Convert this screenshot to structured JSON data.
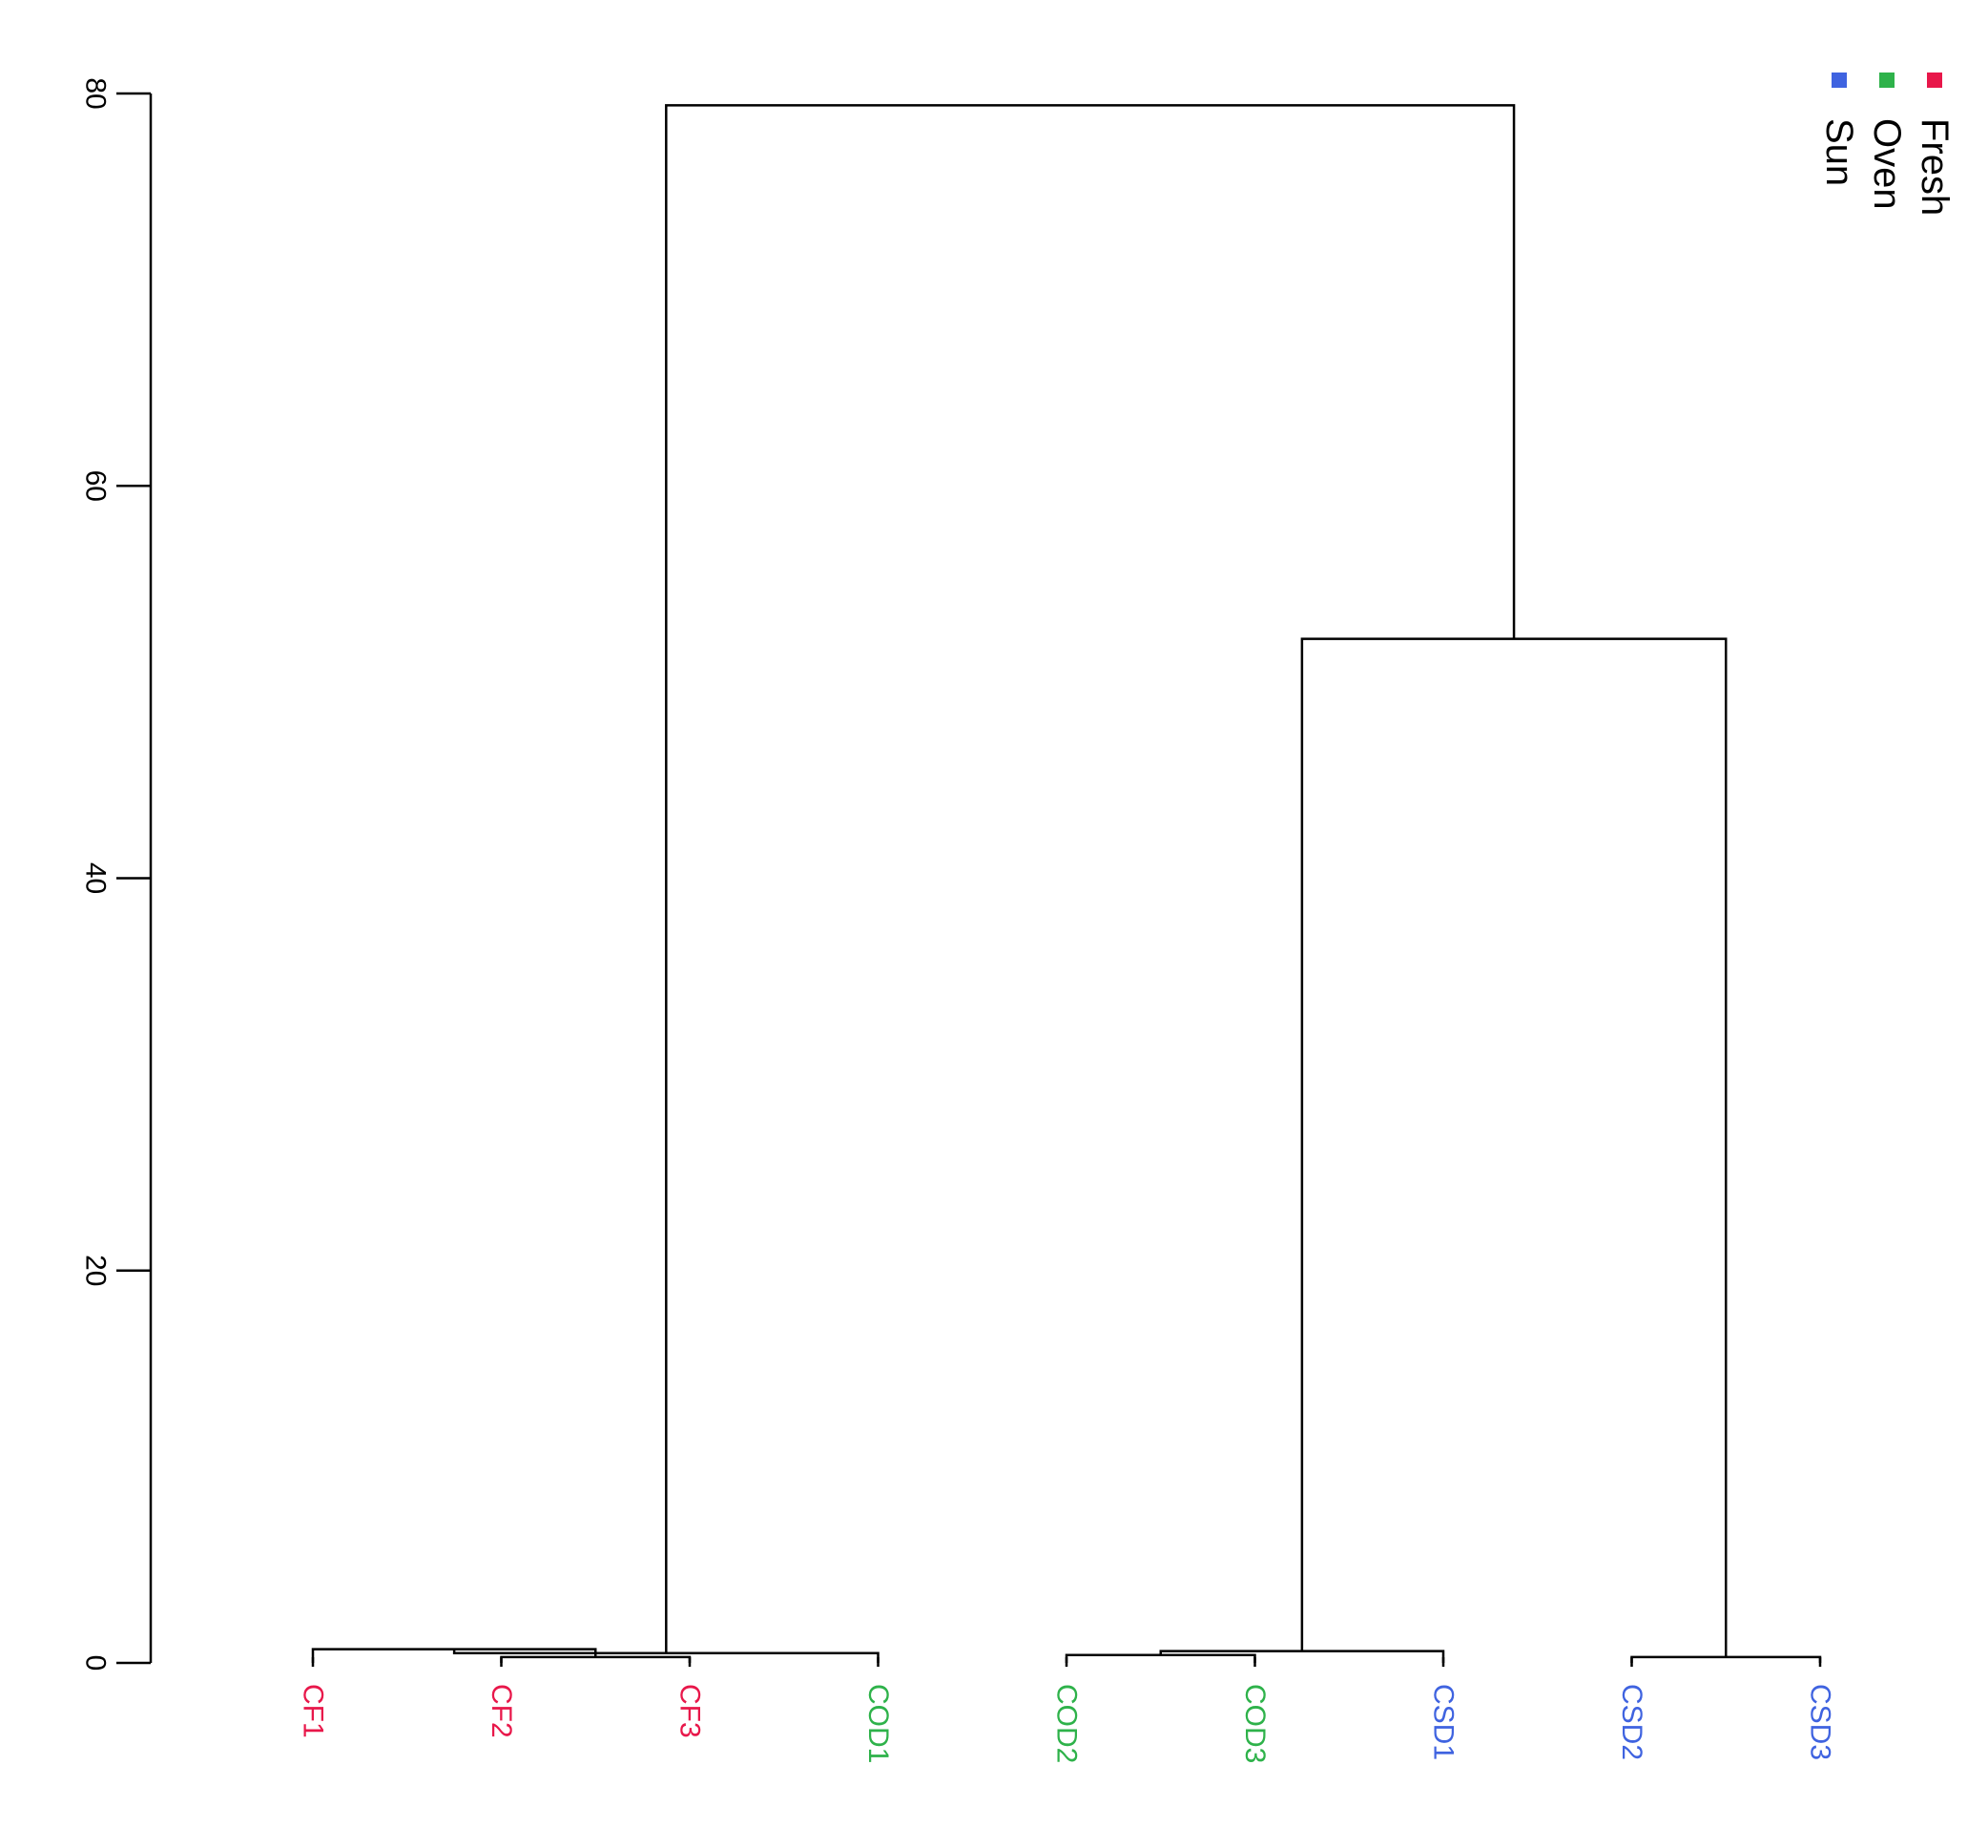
{
  "chart_data": {
    "type": "dendrogram",
    "ylim": [
      0,
      80
    ],
    "y_ticks": [
      0,
      20,
      40,
      60,
      80
    ],
    "tick_labels": [
      "0",
      "20",
      "40",
      "60",
      "80"
    ],
    "leaves": [
      {
        "label": "CF1",
        "group": "Fresh"
      },
      {
        "label": "CF2",
        "group": "Fresh"
      },
      {
        "label": "CF3",
        "group": "Fresh"
      },
      {
        "label": "COD1",
        "group": "Oven"
      },
      {
        "label": "COD2",
        "group": "Oven"
      },
      {
        "label": "COD3",
        "group": "Oven"
      },
      {
        "label": "CSD1",
        "group": "Sun"
      },
      {
        "label": "CSD2",
        "group": "Sun"
      },
      {
        "label": "CSD3",
        "group": "Sun"
      }
    ],
    "merges": [
      {
        "left": "CF2",
        "right": "CF3",
        "height": 0.3
      },
      {
        "left": "CF1",
        "right": "CF2+CF3",
        "height": 0.7
      },
      {
        "left": "COD2",
        "right": "COD3",
        "height": 0.4
      },
      {
        "left": "COD1",
        "right": "COD2+COD3",
        "height": 0.5
      },
      {
        "left": "CSD2",
        "right": "CSD3",
        "height": 0.3
      },
      {
        "left": "CSD1",
        "right": "CSD2+CSD3",
        "height": 0.6
      },
      {
        "left": "COD cluster",
        "right": "CSD cluster",
        "height": 52.2
      },
      {
        "left": "CF cluster",
        "right": "COD+CSD cluster",
        "height": 79.4
      }
    ],
    "legend": {
      "placement": "top-right",
      "entries": [
        {
          "name": "Fresh",
          "color": "#e8174a"
        },
        {
          "name": "Oven",
          "color": "#2eb24a"
        },
        {
          "name": "Sun",
          "color": "#3f63e0"
        }
      ]
    }
  }
}
